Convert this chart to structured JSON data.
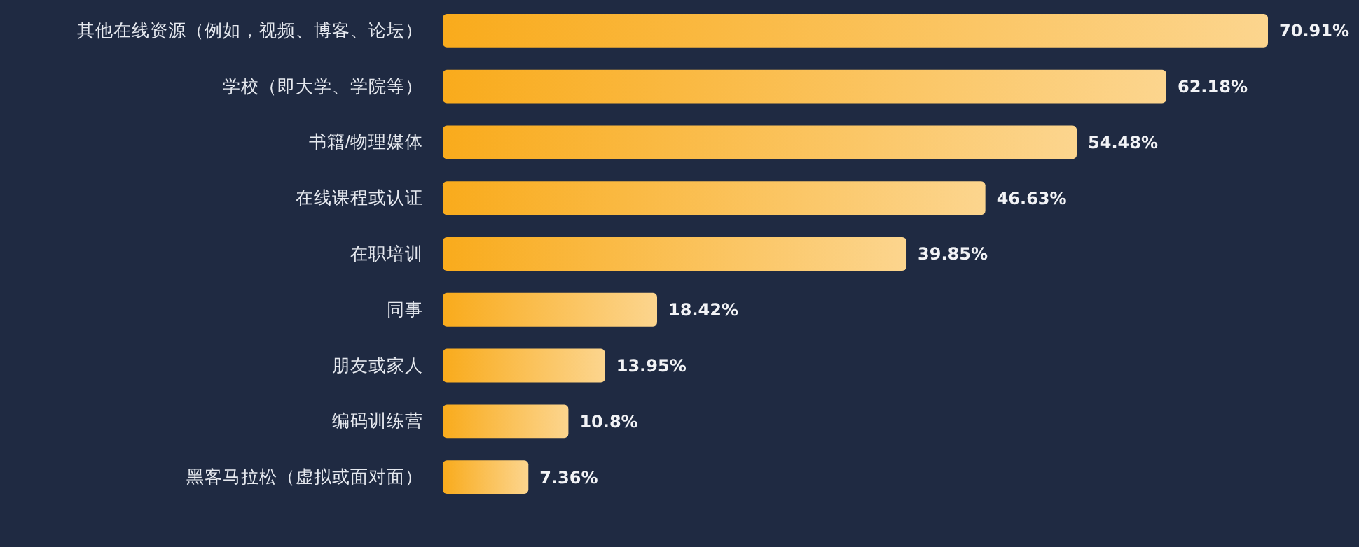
{
  "chart_data": {
    "type": "bar",
    "orientation": "horizontal",
    "categories": [
      "其他在线资源（例如，视频、博客、论坛）",
      "学校（即大学、学院等）",
      "书籍/物理媒体",
      "在线课程或认证",
      "在职培训",
      "同事",
      "朋友或家人",
      "编码训练营",
      "黑客马拉松（虚拟或面对面）"
    ],
    "values": [
      70.91,
      62.18,
      54.48,
      46.63,
      39.85,
      18.42,
      13.95,
      10.8,
      7.36
    ],
    "value_labels": [
      "70.91%",
      "62.18%",
      "54.48%",
      "46.63%",
      "39.85%",
      "18.42%",
      "13.95%",
      "10.8%",
      "7.36%"
    ],
    "color": "#f9ab1c",
    "tick_labels": "y"
  }
}
